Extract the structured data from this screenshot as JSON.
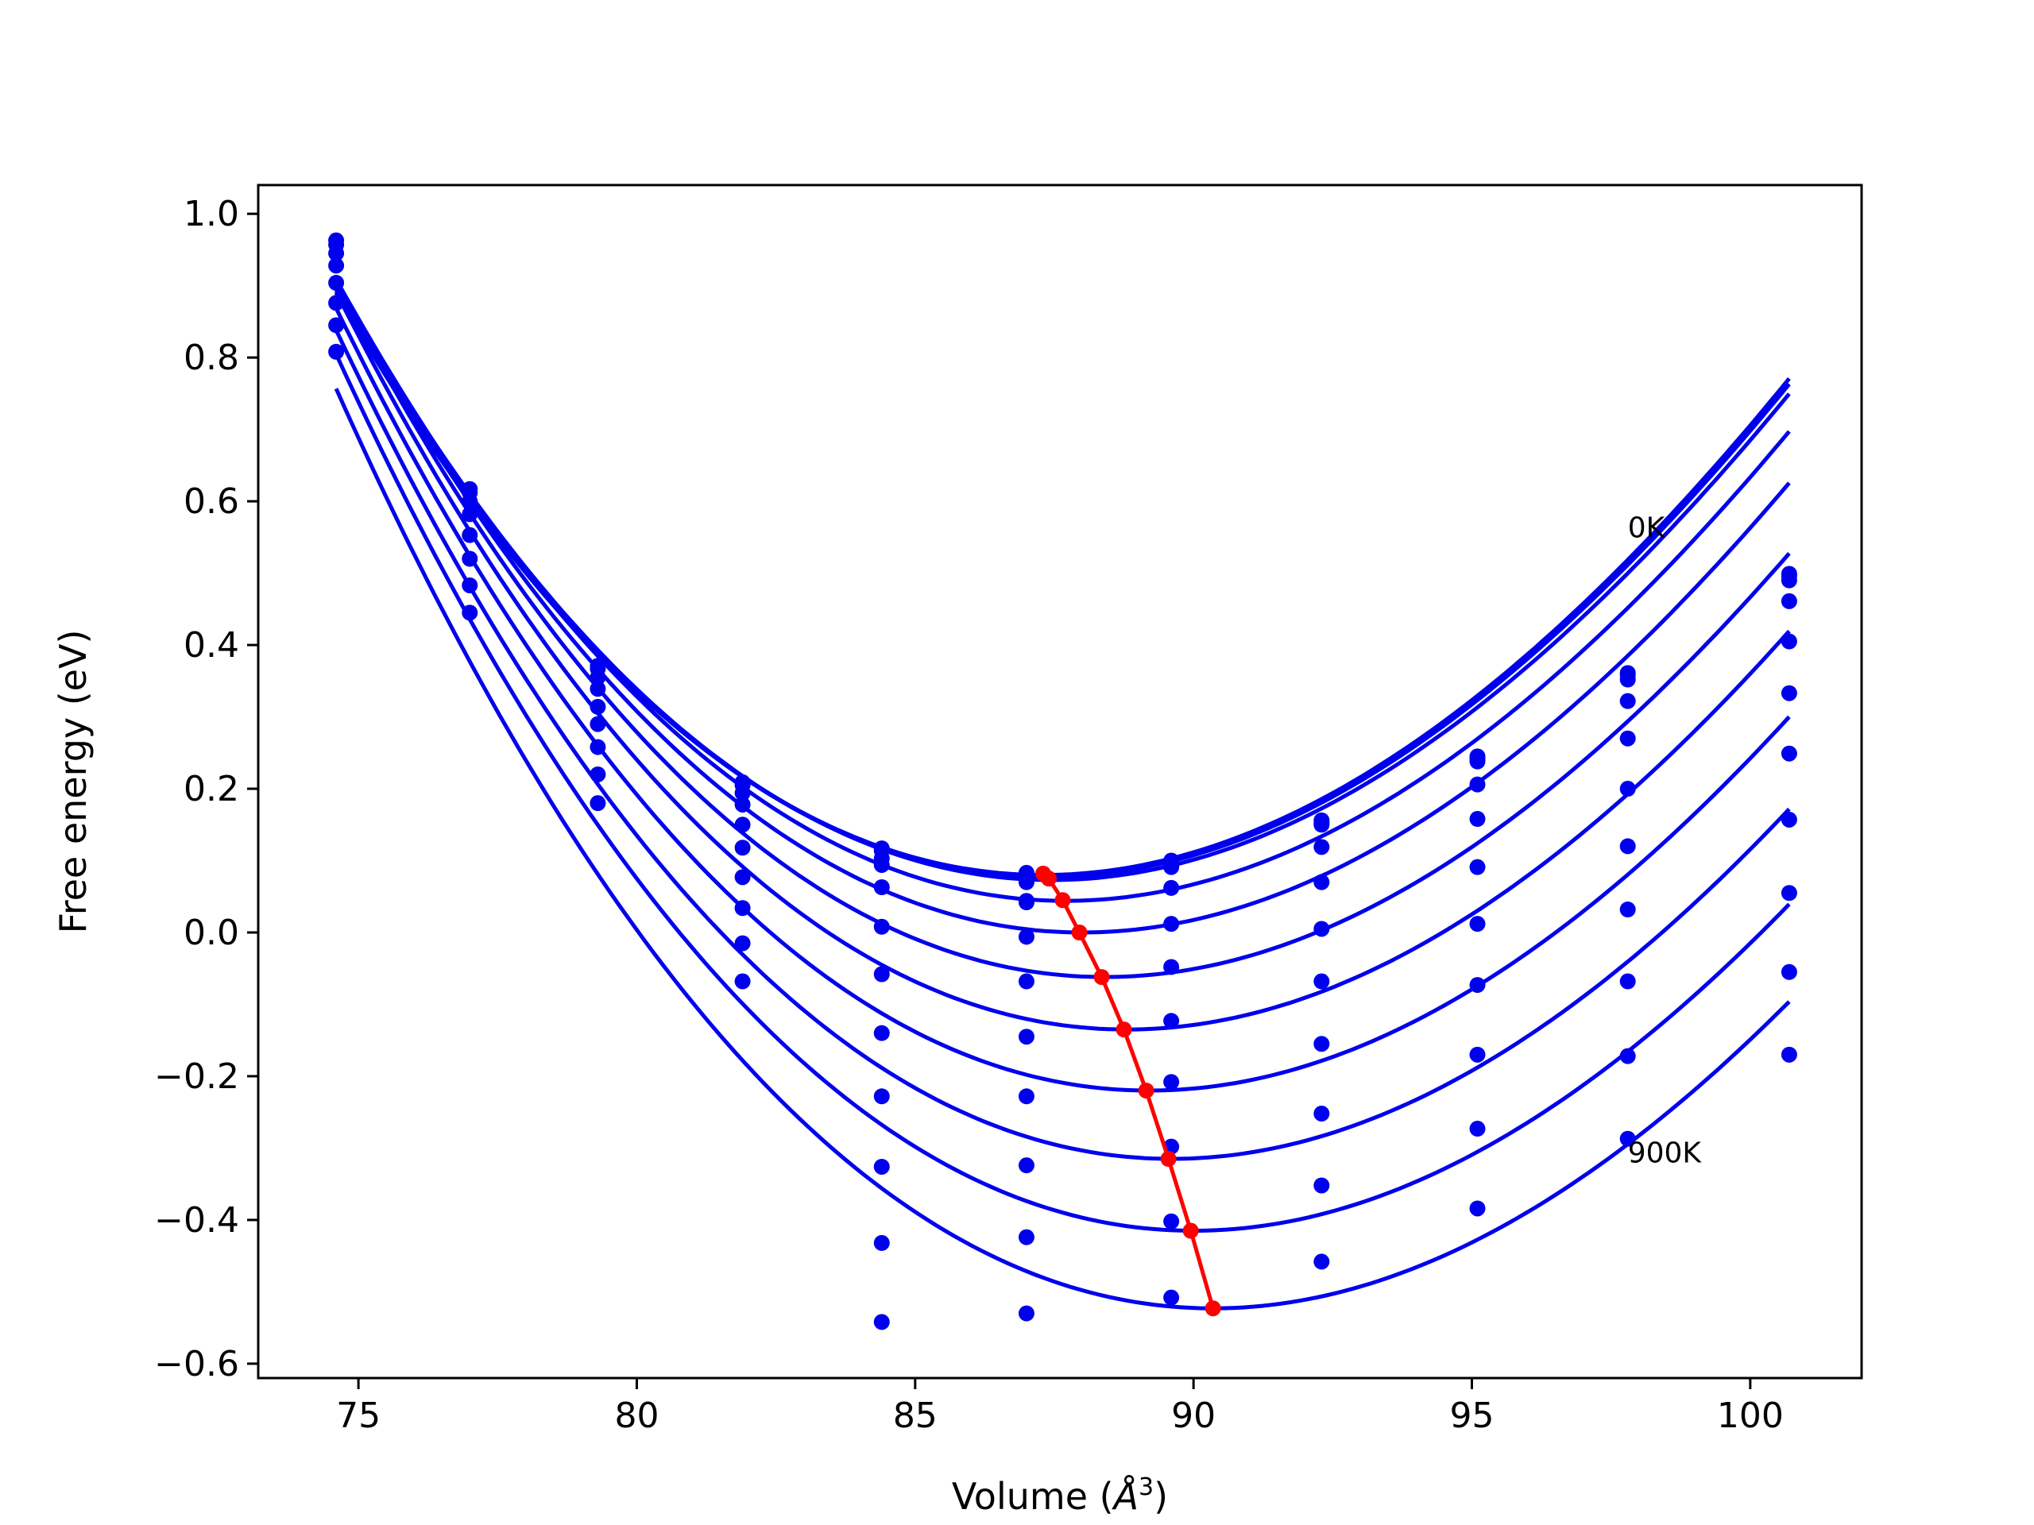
{
  "chart_data": {
    "type": "line",
    "title": "",
    "xlabel": {
      "prefix": "Volume (",
      "unit": "Å",
      "exponent": "3",
      "suffix": ")"
    },
    "ylabel": "Free energy (eV)",
    "xlim": [
      73.2,
      102.0
    ],
    "ylim": [
      -0.62,
      1.04
    ],
    "xticks": [
      75,
      80,
      85,
      90,
      95,
      100
    ],
    "xtick_labels": [
      "75",
      "80",
      "85",
      "90",
      "95",
      "100"
    ],
    "yticks": [
      1.0,
      0.8,
      0.6,
      0.4,
      0.2,
      0.0,
      -0.2,
      -0.4,
      -0.6
    ],
    "ytick_labels": [
      "1.0",
      "0.8",
      "0.6",
      "0.4",
      "0.2",
      "0.0",
      "−0.2",
      "−0.4",
      "−0.6"
    ],
    "grid": false,
    "legend": "none",
    "colors": {
      "fit": "#0000ee",
      "points": "#0000ee",
      "minimum_path": "#ff0000"
    },
    "annotations": [
      {
        "text": "0K",
        "x": 97.8,
        "y": 0.55
      },
      {
        "text": "900K",
        "x": 97.8,
        "y": -0.32
      }
    ],
    "volumes": [
      74.6,
      77.0,
      79.3,
      81.9,
      84.4,
      87.0,
      89.6,
      92.3,
      95.1,
      97.8,
      100.7
    ],
    "series": [
      {
        "points": [
          0.963,
          0.617,
          0.371,
          0.209,
          0.117,
          0.083,
          0.1,
          0.156,
          0.245,
          0.361,
          0.499
        ],
        "fit": {
          "min_volume": 87.3,
          "min_energy": 0.08,
          "a": 0.00445,
          "b": -4.5e-05,
          "x_start": 74.6,
          "x_end": 100.7
        }
      },
      {
        "points": [
          0.957,
          0.612,
          0.367,
          0.205,
          0.114,
          0.08,
          0.097,
          0.153,
          0.242,
          0.358,
          0.496
        ],
        "fit": {
          "min_volume": 87.35,
          "min_energy": 0.077,
          "a": 0.00445,
          "b": -4.5e-05,
          "x_start": 74.6,
          "x_end": 100.7
        }
      },
      {
        "points": [
          0.945,
          0.6,
          0.355,
          0.194,
          0.103,
          0.07,
          0.091,
          0.15,
          0.238,
          0.352,
          0.49
        ],
        "fit": {
          "min_volume": 87.45,
          "min_energy": 0.073,
          "a": 0.00445,
          "b": -4.5e-05,
          "x_start": 74.6,
          "x_end": 100.7
        }
      },
      {
        "points": [
          0.928,
          0.582,
          0.339,
          0.178,
          0.094,
          0.044,
          0.062,
          0.119,
          0.206,
          0.322,
          0.461
        ],
        "fit": {
          "min_volume": 87.7,
          "min_energy": 0.044,
          "a": 0.00445,
          "b": -4.5e-05,
          "x_start": 74.6,
          "x_end": 100.7
        }
      },
      {
        "points": [
          0.904,
          0.553,
          0.314,
          0.15,
          0.063,
          0.042,
          0.012,
          0.07,
          0.158,
          0.27,
          0.405
        ],
        "fit": {
          "min_volume": 88.0,
          "min_energy": 0.0,
          "a": 0.00445,
          "b": -4.5e-05,
          "x_start": 74.6,
          "x_end": 100.7
        }
      },
      {
        "points": [
          0.876,
          0.52,
          0.29,
          0.118,
          0.008,
          -0.006,
          -0.048,
          0.005,
          0.091,
          0.2,
          0.333
        ],
        "fit": {
          "min_volume": 88.4,
          "min_energy": -0.062,
          "a": 0.00445,
          "b": -4.5e-05,
          "x_start": 74.6,
          "x_end": 100.7
        }
      },
      {
        "points": [
          0.845,
          0.483,
          0.258,
          0.077,
          -0.058,
          -0.068,
          -0.123,
          -0.068,
          0.012,
          0.12,
          0.249
        ],
        "fit": {
          "min_volume": 88.8,
          "min_energy": -0.135,
          "a": 0.00445,
          "b": -4.5e-05,
          "x_start": 74.6,
          "x_end": 100.7
        }
      },
      {
        "points": [
          0.808,
          0.445,
          0.22,
          0.034,
          -0.14,
          -0.145,
          -0.208,
          -0.155,
          -0.073,
          0.032,
          0.157
        ],
        "fit": {
          "min_volume": 89.2,
          "min_energy": -0.22,
          "a": 0.00445,
          "b": -4.5e-05,
          "x_start": 74.6,
          "x_end": 100.7
        }
      },
      {
        "points": [
          null,
          null,
          0.18,
          -0.015,
          -0.228,
          -0.228,
          -0.298,
          -0.252,
          -0.17,
          -0.068,
          0.055
        ],
        "fit": {
          "min_volume": 89.6,
          "min_energy": -0.315,
          "a": 0.00445,
          "b": -4.5e-05,
          "x_start": 74.6,
          "x_end": 100.7
        }
      },
      {
        "points": [
          null,
          null,
          null,
          -0.068,
          -0.326,
          -0.324,
          -0.402,
          -0.352,
          -0.273,
          -0.172,
          -0.055
        ],
        "fit": {
          "min_volume": 90.0,
          "min_energy": -0.415,
          "a": 0.00445,
          "b": -4.5e-05,
          "x_start": 74.6,
          "x_end": 100.7
        }
      },
      {
        "points": [
          null,
          null,
          null,
          null,
          -0.432,
          -0.424,
          -0.508,
          -0.458,
          -0.384,
          -0.287,
          -0.17
        ],
        "fit": {
          "min_volume": 90.35,
          "min_energy": -0.523,
          "a": 0.00445,
          "b": -4.5e-05,
          "x_start": 74.6,
          "x_end": 100.7
        }
      },
      {
        "points": [
          null,
          null,
          null,
          null,
          -0.542,
          -0.53,
          null,
          null,
          null,
          null,
          null
        ],
        "fit": null
      }
    ],
    "minimum_path": {
      "x": [
        87.3,
        87.4,
        87.65,
        87.95,
        88.35,
        88.75,
        89.15,
        89.55,
        89.95,
        90.35
      ],
      "y": [
        0.082,
        0.075,
        0.045,
        0.0,
        -0.062,
        -0.135,
        -0.22,
        -0.315,
        -0.415,
        -0.523
      ]
    }
  }
}
